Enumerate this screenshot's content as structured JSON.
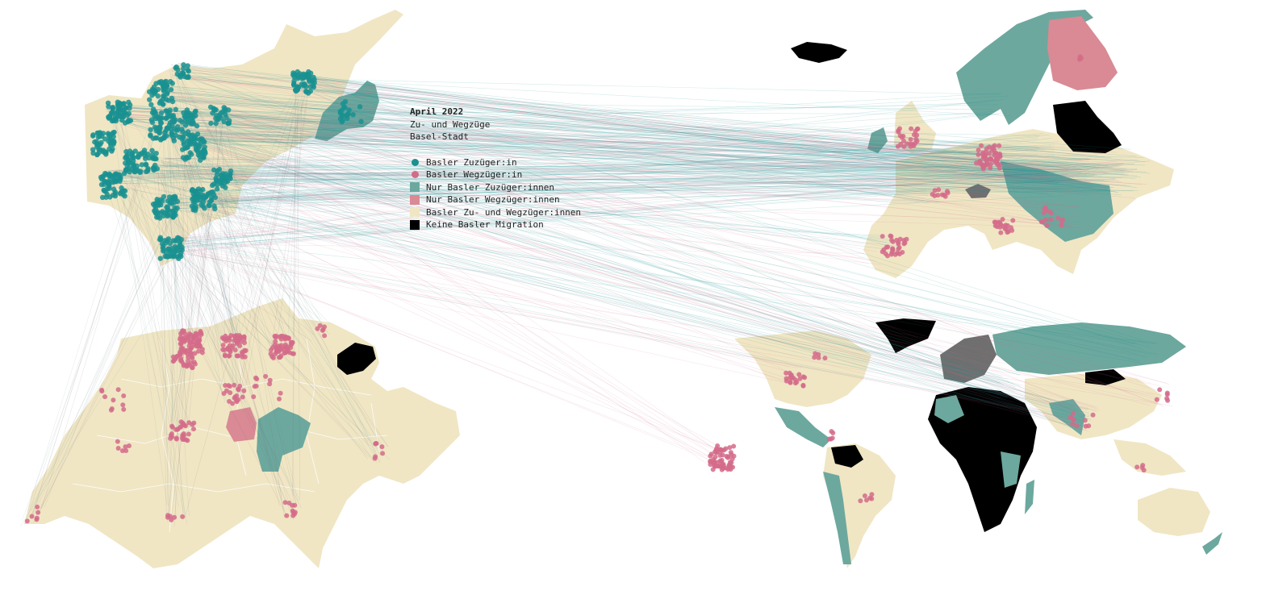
{
  "legend": {
    "title": "April 2022",
    "subtitle1": "Zu- und Wegzüge",
    "subtitle2": "Basel-Stadt",
    "items": [
      {
        "label": "Basler Zuzüger:in",
        "kind": "dot",
        "color": "#1a9190"
      },
      {
        "label": "Basler Wegzüger:in",
        "kind": "dot",
        "color": "#d36b8a"
      },
      {
        "label": "Nur Basler Zuzüger:innen",
        "kind": "square",
        "color": "#6ca89e"
      },
      {
        "label": "Nur Basler Wegzüger:innen",
        "kind": "square",
        "color": "#d98a94"
      },
      {
        "label": "Basler Zu- und Wegzüger:innen",
        "kind": "square",
        "color": "#f0e6c4"
      },
      {
        "label": "Keine Basler Migration",
        "kind": "square",
        "color": "#000000"
      }
    ]
  },
  "colors": {
    "zuzug": "#1a9190",
    "wegzug": "#d36b8a",
    "only_in": "#6ca89e",
    "only_out": "#d98a94",
    "both": "#f0e6c4",
    "none": "#000000",
    "other": "#6f6f6f"
  }
}
